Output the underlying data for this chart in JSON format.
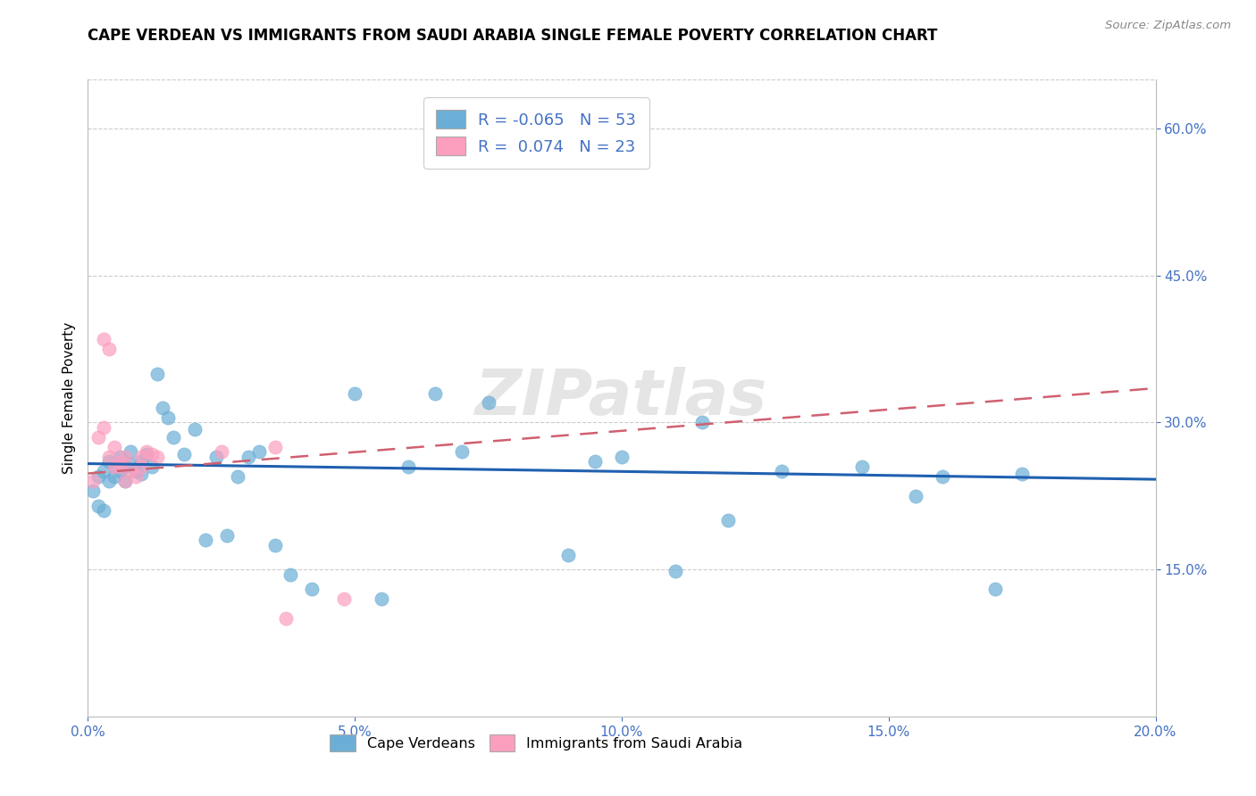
{
  "title": "CAPE VERDEAN VS IMMIGRANTS FROM SAUDI ARABIA SINGLE FEMALE POVERTY CORRELATION CHART",
  "source_text": "Source: ZipAtlas.com",
  "ylabel": "Single Female Poverty",
  "xlim": [
    0.0,
    0.2
  ],
  "ylim": [
    0.0,
    0.65
  ],
  "xtick_values": [
    0.0,
    0.05,
    0.1,
    0.15,
    0.2
  ],
  "ytick_values": [
    0.15,
    0.3,
    0.45,
    0.6
  ],
  "blue_color": "#6baed6",
  "pink_color": "#fc9fbf",
  "blue_line_color": "#2060b0",
  "pink_line_color": "#d06070",
  "watermark": "ZIPatlas",
  "blue_points_x": [
    0.001,
    0.002,
    0.002,
    0.003,
    0.003,
    0.004,
    0.004,
    0.005,
    0.005,
    0.006,
    0.006,
    0.007,
    0.007,
    0.008,
    0.008,
    0.009,
    0.01,
    0.01,
    0.011,
    0.012,
    0.013,
    0.014,
    0.015,
    0.016,
    0.018,
    0.02,
    0.022,
    0.024,
    0.026,
    0.028,
    0.03,
    0.032,
    0.035,
    0.038,
    0.042,
    0.05,
    0.055,
    0.06,
    0.065,
    0.07,
    0.075,
    0.09,
    0.095,
    0.1,
    0.11,
    0.115,
    0.12,
    0.13,
    0.145,
    0.155,
    0.16,
    0.17,
    0.175
  ],
  "blue_points_y": [
    0.23,
    0.245,
    0.215,
    0.25,
    0.21,
    0.26,
    0.24,
    0.255,
    0.245,
    0.265,
    0.25,
    0.255,
    0.24,
    0.27,
    0.258,
    0.25,
    0.26,
    0.248,
    0.268,
    0.255,
    0.35,
    0.315,
    0.305,
    0.285,
    0.268,
    0.293,
    0.18,
    0.265,
    0.185,
    0.245,
    0.265,
    0.27,
    0.175,
    0.145,
    0.13,
    0.33,
    0.12,
    0.255,
    0.33,
    0.27,
    0.32,
    0.165,
    0.26,
    0.265,
    0.148,
    0.3,
    0.2,
    0.25,
    0.255,
    0.225,
    0.245,
    0.13,
    0.248
  ],
  "pink_points_x": [
    0.001,
    0.002,
    0.003,
    0.003,
    0.004,
    0.004,
    0.005,
    0.005,
    0.006,
    0.006,
    0.007,
    0.007,
    0.008,
    0.009,
    0.01,
    0.01,
    0.011,
    0.012,
    0.013,
    0.025,
    0.035,
    0.037,
    0.048
  ],
  "pink_points_y": [
    0.24,
    0.285,
    0.295,
    0.385,
    0.375,
    0.265,
    0.275,
    0.255,
    0.26,
    0.255,
    0.265,
    0.24,
    0.25,
    0.245,
    0.255,
    0.265,
    0.27,
    0.268,
    0.265,
    0.27,
    0.275,
    0.1,
    0.12
  ]
}
